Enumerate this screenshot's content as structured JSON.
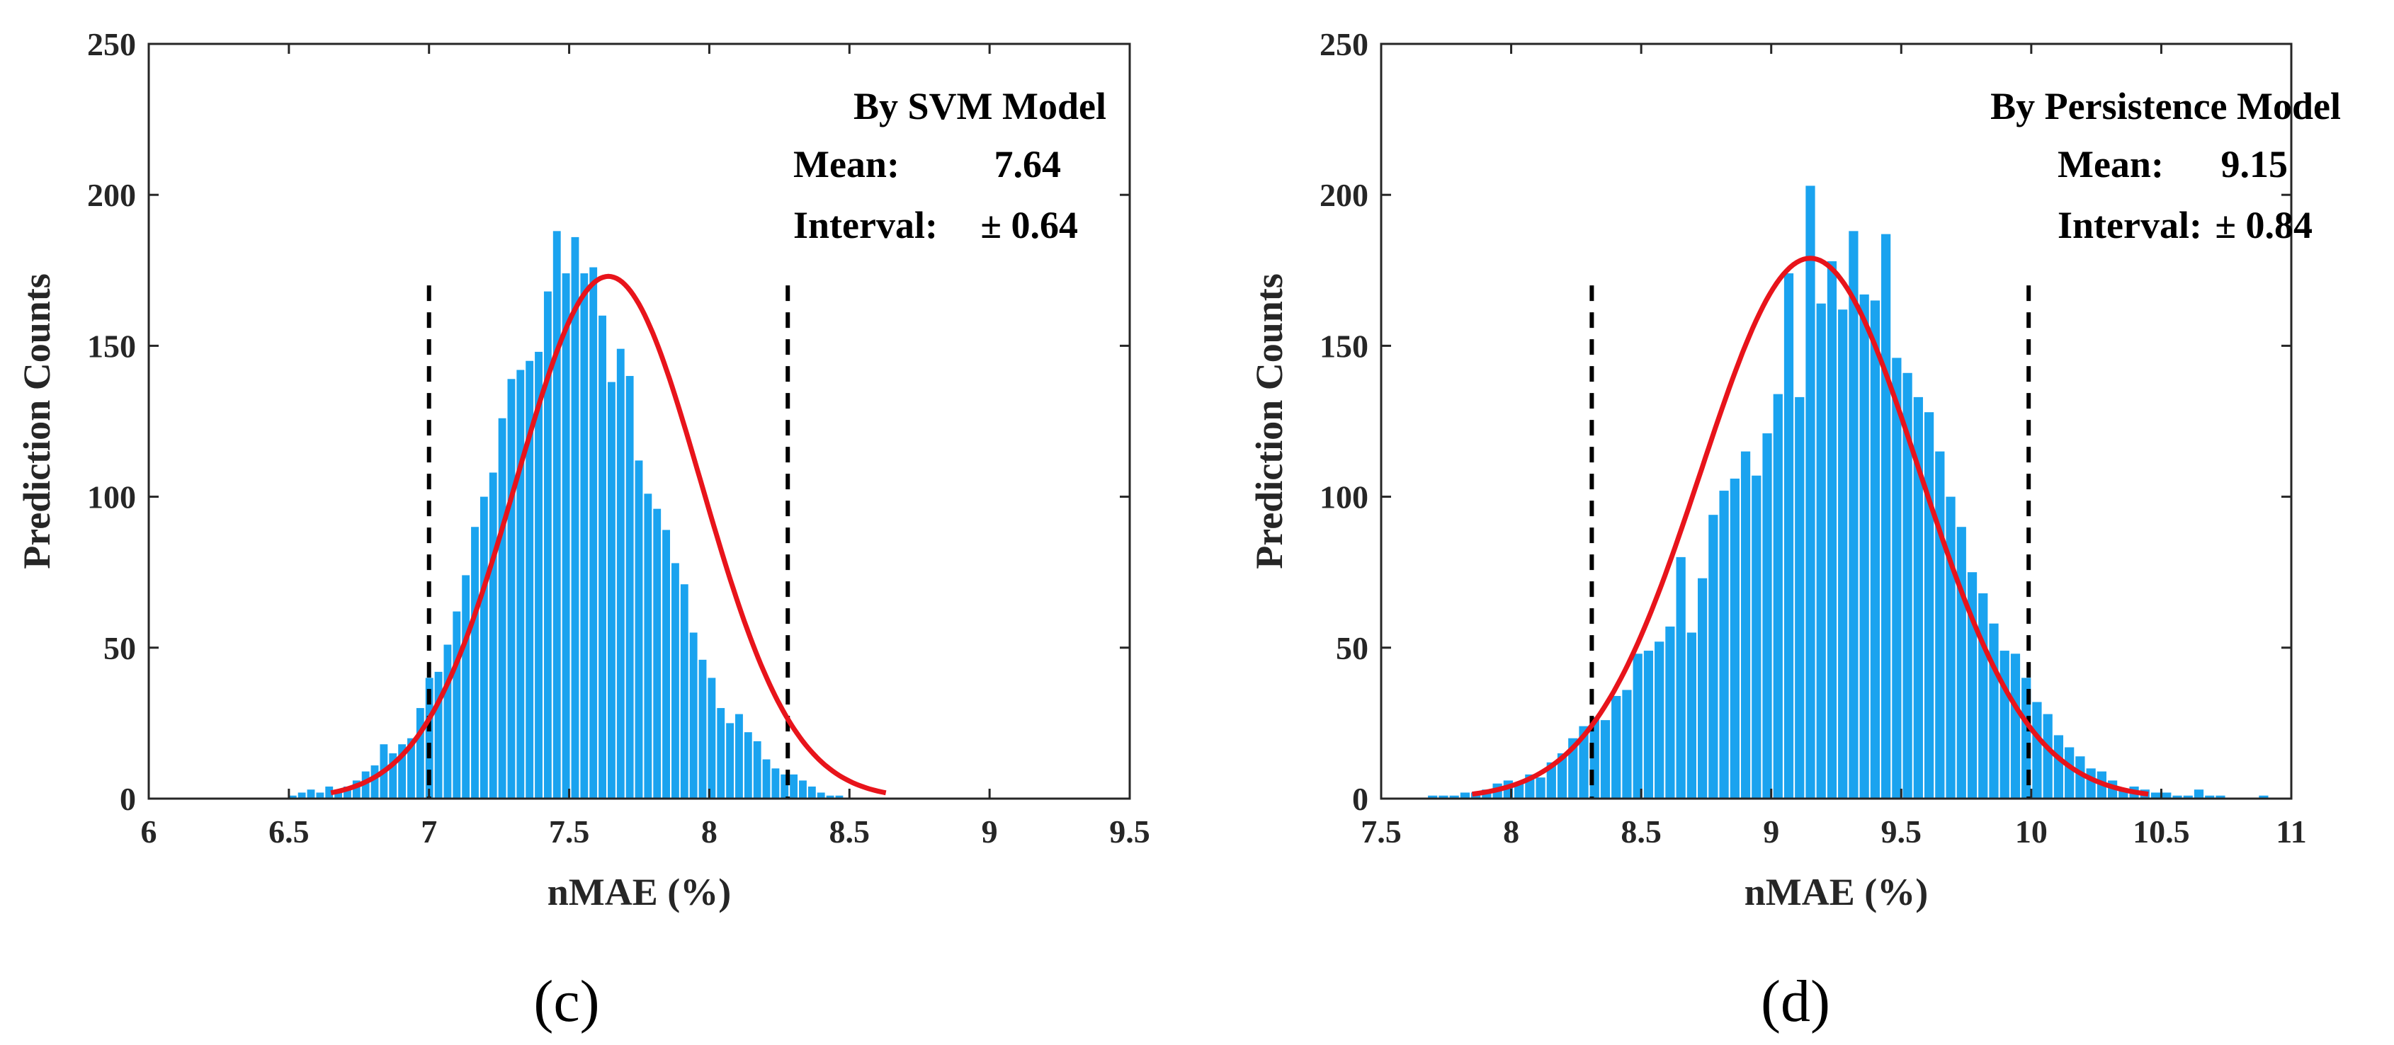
{
  "colors": {
    "bar": "#1aa3ef",
    "fit": "#e8141b",
    "dash": "#000000",
    "axis": "#262626",
    "title": "#ee1111"
  },
  "chart_data": [
    {
      "type": "bar",
      "panel_label": "(c)",
      "title": "By SVM Model",
      "mean_label": "Mean:",
      "mean_value": "7.64",
      "interval_label": "Interval:",
      "interval_value": "± 0.64",
      "xlabel": "nMAE (%)",
      "ylabel": "Prediction Counts",
      "xlim": [
        6,
        9.5
      ],
      "ylim": [
        0,
        250
      ],
      "xticks": [
        "6",
        "6.5",
        "7",
        "7.5",
        "8",
        "8.5",
        "9",
        "9.5"
      ],
      "yticks": [
        "0",
        "50",
        "100",
        "150",
        "200",
        "250"
      ],
      "bin_start": 6.5,
      "bin_width": 0.0325,
      "counts": [
        1,
        2,
        3,
        2,
        4,
        3,
        4,
        6,
        9,
        11,
        18,
        15,
        18,
        20,
        30,
        40,
        42,
        51,
        62,
        74,
        90,
        100,
        108,
        126,
        139,
        142,
        145,
        148,
        168,
        188,
        174,
        186,
        174,
        176,
        160,
        138,
        149,
        140,
        112,
        101,
        96,
        89,
        78,
        71,
        55,
        46,
        40,
        30,
        25,
        28,
        22,
        19,
        13,
        10,
        8,
        8,
        6,
        4,
        2,
        1,
        1
      ],
      "fit": {
        "mean": 7.64,
        "sigma": 0.33,
        "peak": 173,
        "x_from": 6.65,
        "x_to": 8.63
      },
      "dashed_lines": [
        7.0,
        8.28
      ],
      "dash_top": 170
    },
    {
      "type": "bar",
      "panel_label": "(d)",
      "title": "By Persistence Model",
      "mean_label": "Mean:",
      "mean_value": "9.15",
      "interval_label": "Interval:",
      "interval_value": "± 0.84",
      "xlabel": "nMAE (%)",
      "ylabel": "Prediction Counts",
      "xlim": [
        7.5,
        11
      ],
      "ylim": [
        0,
        250
      ],
      "xticks": [
        "7.5",
        "8",
        "8.5",
        "9",
        "9.5",
        "10",
        "10.5",
        "11"
      ],
      "yticks": [
        "0",
        "50",
        "100",
        "150",
        "200",
        "250"
      ],
      "bin_start": 7.68,
      "bin_width": 0.0415,
      "counts": [
        1,
        1,
        1,
        2,
        2,
        3,
        5,
        6,
        5,
        8,
        7,
        12,
        15,
        20,
        24,
        27,
        26,
        34,
        36,
        48,
        49,
        52,
        57,
        80,
        55,
        73,
        94,
        102,
        106,
        115,
        107,
        121,
        134,
        174,
        133,
        203,
        164,
        178,
        162,
        188,
        167,
        165,
        187,
        146,
        141,
        133,
        128,
        115,
        100,
        90,
        75,
        68,
        58,
        49,
        48,
        40,
        32,
        28,
        21,
        17,
        14,
        10,
        9,
        6,
        3,
        4,
        3,
        2,
        2,
        1,
        1,
        3,
        1,
        1,
        0,
        0,
        0,
        1
      ],
      "fit": {
        "mean": 9.15,
        "sigma": 0.42,
        "peak": 179,
        "x_from": 7.85,
        "x_to": 10.45
      },
      "dashed_lines": [
        8.31,
        9.99
      ],
      "dash_top": 170
    }
  ]
}
